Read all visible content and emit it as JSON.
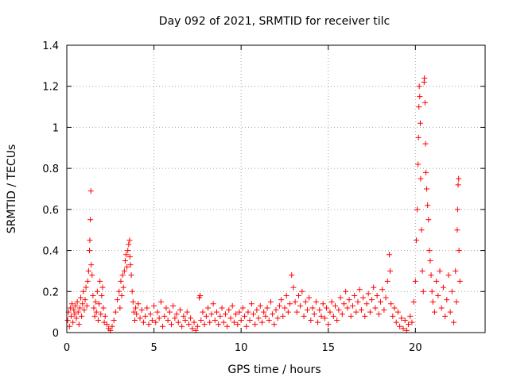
{
  "chart_data": {
    "type": "scatter",
    "title": "Day 092 of 2021, SRMTID for receiver tilc",
    "xlabel": "GPS time / hours",
    "ylabel": "SRMTID / TECUs",
    "xlim": [
      0,
      24
    ],
    "ylim": [
      0,
      1.4
    ],
    "xticks": [
      0,
      5,
      10,
      15,
      20
    ],
    "xtick_labels": [
      "0",
      "5",
      "10",
      "15",
      "20"
    ],
    "yticks": [
      0,
      0.2,
      0.4,
      0.6,
      0.8,
      1.0,
      1.2,
      1.4
    ],
    "ytick_labels": [
      "0",
      "0.2",
      "0.4",
      "0.6",
      "0.8",
      "1",
      "1.2",
      "1.4"
    ],
    "grid": true,
    "marker": "+",
    "color": "#ff0000",
    "series": [
      {
        "name": "SRMTID",
        "points": [
          [
            0.05,
            0.06
          ],
          [
            0.1,
            0.1
          ],
          [
            0.15,
            0.03
          ],
          [
            0.2,
            0.12
          ],
          [
            0.25,
            0.08
          ],
          [
            0.3,
            0.14
          ],
          [
            0.35,
            0.05
          ],
          [
            0.4,
            0.11
          ],
          [
            0.45,
            0.09
          ],
          [
            0.5,
            0.13
          ],
          [
            0.55,
            0.07
          ],
          [
            0.6,
            0.15
          ],
          [
            0.65,
            0.1
          ],
          [
            0.7,
            0.04
          ],
          [
            0.75,
            0.12
          ],
          [
            0.8,
            0.17
          ],
          [
            0.85,
            0.08
          ],
          [
            0.9,
            0.14
          ],
          [
            0.95,
            0.2
          ],
          [
            1.0,
            0.11
          ],
          [
            1.05,
            0.16
          ],
          [
            1.1,
            0.22
          ],
          [
            1.15,
            0.13
          ],
          [
            1.2,
            0.25
          ],
          [
            1.25,
            0.3
          ],
          [
            1.3,
            0.4
          ],
          [
            1.32,
            0.45
          ],
          [
            1.35,
            0.55
          ],
          [
            1.38,
            0.69
          ],
          [
            1.4,
            0.33
          ],
          [
            1.45,
            0.28
          ],
          [
            1.5,
            0.18
          ],
          [
            1.55,
            0.12
          ],
          [
            1.6,
            0.08
          ],
          [
            1.65,
            0.15
          ],
          [
            1.7,
            0.1
          ],
          [
            1.75,
            0.2
          ],
          [
            1.8,
            0.06
          ],
          [
            1.85,
            0.14
          ],
          [
            1.9,
            0.25
          ],
          [
            1.95,
            0.09
          ],
          [
            2.0,
            0.18
          ],
          [
            2.05,
            0.22
          ],
          [
            2.1,
            0.12
          ],
          [
            2.15,
            0.05
          ],
          [
            2.2,
            0.08
          ],
          [
            2.3,
            0.04
          ],
          [
            2.4,
            0.02
          ],
          [
            2.5,
            0.01
          ],
          [
            2.6,
            0.03
          ],
          [
            2.7,
            0.06
          ],
          [
            2.8,
            0.1
          ],
          [
            2.9,
            0.16
          ],
          [
            3.0,
            0.2
          ],
          [
            3.05,
            0.12
          ],
          [
            3.1,
            0.25
          ],
          [
            3.15,
            0.18
          ],
          [
            3.2,
            0.28
          ],
          [
            3.25,
            0.22
          ],
          [
            3.3,
            0.3
          ],
          [
            3.35,
            0.35
          ],
          [
            3.4,
            0.38
          ],
          [
            3.45,
            0.32
          ],
          [
            3.5,
            0.4
          ],
          [
            3.55,
            0.43
          ],
          [
            3.6,
            0.45
          ],
          [
            3.62,
            0.37
          ],
          [
            3.65,
            0.33
          ],
          [
            3.7,
            0.28
          ],
          [
            3.75,
            0.2
          ],
          [
            3.8,
            0.15
          ],
          [
            3.85,
            0.1
          ],
          [
            3.9,
            0.06
          ],
          [
            3.95,
            0.12
          ],
          [
            4.0,
            0.09
          ],
          [
            4.1,
            0.14
          ],
          [
            4.2,
            0.07
          ],
          [
            4.3,
            0.11
          ],
          [
            4.4,
            0.05
          ],
          [
            4.5,
            0.08
          ],
          [
            4.6,
            0.12
          ],
          [
            4.7,
            0.04
          ],
          [
            4.8,
            0.09
          ],
          [
            4.9,
            0.06
          ],
          [
            5.0,
            0.13
          ],
          [
            5.1,
            0.05
          ],
          [
            5.2,
            0.1
          ],
          [
            5.3,
            0.07
          ],
          [
            5.4,
            0.15
          ],
          [
            5.5,
            0.03
          ],
          [
            5.6,
            0.08
          ],
          [
            5.7,
            0.12
          ],
          [
            5.8,
            0.06
          ],
          [
            5.9,
            0.1
          ],
          [
            6.0,
            0.04
          ],
          [
            6.1,
            0.13
          ],
          [
            6.2,
            0.07
          ],
          [
            6.3,
            0.09
          ],
          [
            6.4,
            0.05
          ],
          [
            6.5,
            0.11
          ],
          [
            6.6,
            0.03
          ],
          [
            6.7,
            0.08
          ],
          [
            6.8,
            0.06
          ],
          [
            6.9,
            0.1
          ],
          [
            7.0,
            0.04
          ],
          [
            7.1,
            0.07
          ],
          [
            7.2,
            0.02
          ],
          [
            7.3,
            0.05
          ],
          [
            7.4,
            0.01
          ],
          [
            7.5,
            0.03
          ],
          [
            7.6,
            0.17
          ],
          [
            7.65,
            0.18
          ],
          [
            7.7,
            0.06
          ],
          [
            7.8,
            0.1
          ],
          [
            7.9,
            0.04
          ],
          [
            8.0,
            0.08
          ],
          [
            8.1,
            0.12
          ],
          [
            8.2,
            0.05
          ],
          [
            8.3,
            0.09
          ],
          [
            8.4,
            0.14
          ],
          [
            8.5,
            0.06
          ],
          [
            8.6,
            0.1
          ],
          [
            8.7,
            0.04
          ],
          [
            8.8,
            0.08
          ],
          [
            8.9,
            0.12
          ],
          [
            9.0,
            0.05
          ],
          [
            9.1,
            0.09
          ],
          [
            9.2,
            0.03
          ],
          [
            9.3,
            0.11
          ],
          [
            9.4,
            0.07
          ],
          [
            9.5,
            0.13
          ],
          [
            9.6,
            0.05
          ],
          [
            9.7,
            0.09
          ],
          [
            9.8,
            0.04
          ],
          [
            9.9,
            0.1
          ],
          [
            10.0,
            0.06
          ],
          [
            10.1,
            0.12
          ],
          [
            10.2,
            0.08
          ],
          [
            10.3,
            0.03
          ],
          [
            10.4,
            0.1
          ],
          [
            10.5,
            0.06
          ],
          [
            10.6,
            0.14
          ],
          [
            10.7,
            0.09
          ],
          [
            10.8,
            0.04
          ],
          [
            10.9,
            0.11
          ],
          [
            11.0,
            0.07
          ],
          [
            11.1,
            0.13
          ],
          [
            11.2,
            0.05
          ],
          [
            11.3,
            0.1
          ],
          [
            11.4,
            0.08
          ],
          [
            11.5,
            0.12
          ],
          [
            11.6,
            0.06
          ],
          [
            11.7,
            0.15
          ],
          [
            11.8,
            0.09
          ],
          [
            11.9,
            0.04
          ],
          [
            12.0,
            0.11
          ],
          [
            12.1,
            0.07
          ],
          [
            12.2,
            0.13
          ],
          [
            12.3,
            0.16
          ],
          [
            12.4,
            0.08
          ],
          [
            12.5,
            0.12
          ],
          [
            12.6,
            0.18
          ],
          [
            12.7,
            0.1
          ],
          [
            12.8,
            0.14
          ],
          [
            12.9,
            0.28
          ],
          [
            13.0,
            0.22
          ],
          [
            13.1,
            0.15
          ],
          [
            13.2,
            0.1
          ],
          [
            13.3,
            0.18
          ],
          [
            13.4,
            0.13
          ],
          [
            13.5,
            0.2
          ],
          [
            13.6,
            0.08
          ],
          [
            13.7,
            0.15
          ],
          [
            13.8,
            0.11
          ],
          [
            13.9,
            0.17
          ],
          [
            14.0,
            0.06
          ],
          [
            14.1,
            0.12
          ],
          [
            14.2,
            0.09
          ],
          [
            14.3,
            0.15
          ],
          [
            14.4,
            0.05
          ],
          [
            14.5,
            0.11
          ],
          [
            14.6,
            0.08
          ],
          [
            14.7,
            0.14
          ],
          [
            14.8,
            0.07
          ],
          [
            14.9,
            0.12
          ],
          [
            15.0,
            0.04
          ],
          [
            15.1,
            0.1
          ],
          [
            15.2,
            0.15
          ],
          [
            15.3,
            0.08
          ],
          [
            15.4,
            0.13
          ],
          [
            15.5,
            0.06
          ],
          [
            15.6,
            0.11
          ],
          [
            15.7,
            0.17
          ],
          [
            15.8,
            0.09
          ],
          [
            15.9,
            0.14
          ],
          [
            16.0,
            0.2
          ],
          [
            16.1,
            0.12
          ],
          [
            16.2,
            0.16
          ],
          [
            16.3,
            0.08
          ],
          [
            16.4,
            0.13
          ],
          [
            16.5,
            0.18
          ],
          [
            16.6,
            0.1
          ],
          [
            16.7,
            0.15
          ],
          [
            16.8,
            0.21
          ],
          [
            16.9,
            0.11
          ],
          [
            17.0,
            0.17
          ],
          [
            17.1,
            0.08
          ],
          [
            17.2,
            0.14
          ],
          [
            17.3,
            0.19
          ],
          [
            17.4,
            0.1
          ],
          [
            17.5,
            0.16
          ],
          [
            17.6,
            0.22
          ],
          [
            17.7,
            0.12
          ],
          [
            17.8,
            0.18
          ],
          [
            17.9,
            0.09
          ],
          [
            18.0,
            0.15
          ],
          [
            18.1,
            0.21
          ],
          [
            18.2,
            0.11
          ],
          [
            18.3,
            0.17
          ],
          [
            18.4,
            0.25
          ],
          [
            18.5,
            0.38
          ],
          [
            18.55,
            0.3
          ],
          [
            18.6,
            0.14
          ],
          [
            18.7,
            0.08
          ],
          [
            18.8,
            0.12
          ],
          [
            18.9,
            0.05
          ],
          [
            19.0,
            0.1
          ],
          [
            19.1,
            0.03
          ],
          [
            19.2,
            0.07
          ],
          [
            19.3,
            0.02
          ],
          [
            19.4,
            0.06
          ],
          [
            19.5,
            0.01
          ],
          [
            19.6,
            0.04
          ],
          [
            19.7,
            0.08
          ],
          [
            19.8,
            0.05
          ],
          [
            19.9,
            0.15
          ],
          [
            20.0,
            0.25
          ],
          [
            20.05,
            0.45
          ],
          [
            20.1,
            0.6
          ],
          [
            20.15,
            0.82
          ],
          [
            20.18,
            0.95
          ],
          [
            20.2,
            1.1
          ],
          [
            20.22,
            1.2
          ],
          [
            20.25,
            1.15
          ],
          [
            20.28,
            1.02
          ],
          [
            20.3,
            0.75
          ],
          [
            20.35,
            0.5
          ],
          [
            20.4,
            0.3
          ],
          [
            20.45,
            0.2
          ],
          [
            20.5,
            1.22
          ],
          [
            20.52,
            1.24
          ],
          [
            20.55,
            1.12
          ],
          [
            20.58,
            0.92
          ],
          [
            20.6,
            0.78
          ],
          [
            20.65,
            0.7
          ],
          [
            20.7,
            0.62
          ],
          [
            20.75,
            0.55
          ],
          [
            20.8,
            0.4
          ],
          [
            20.85,
            0.35
          ],
          [
            20.9,
            0.28
          ],
          [
            20.95,
            0.2
          ],
          [
            21.0,
            0.15
          ],
          [
            21.1,
            0.1
          ],
          [
            21.2,
            0.25
          ],
          [
            21.3,
            0.18
          ],
          [
            21.4,
            0.3
          ],
          [
            21.5,
            0.12
          ],
          [
            21.6,
            0.22
          ],
          [
            21.7,
            0.08
          ],
          [
            21.8,
            0.16
          ],
          [
            21.9,
            0.28
          ],
          [
            22.0,
            0.1
          ],
          [
            22.1,
            0.2
          ],
          [
            22.2,
            0.05
          ],
          [
            22.3,
            0.3
          ],
          [
            22.35,
            0.15
          ],
          [
            22.4,
            0.5
          ],
          [
            22.42,
            0.6
          ],
          [
            22.45,
            0.72
          ],
          [
            22.48,
            0.75
          ],
          [
            22.5,
            0.4
          ],
          [
            22.55,
            0.25
          ]
        ]
      }
    ]
  }
}
